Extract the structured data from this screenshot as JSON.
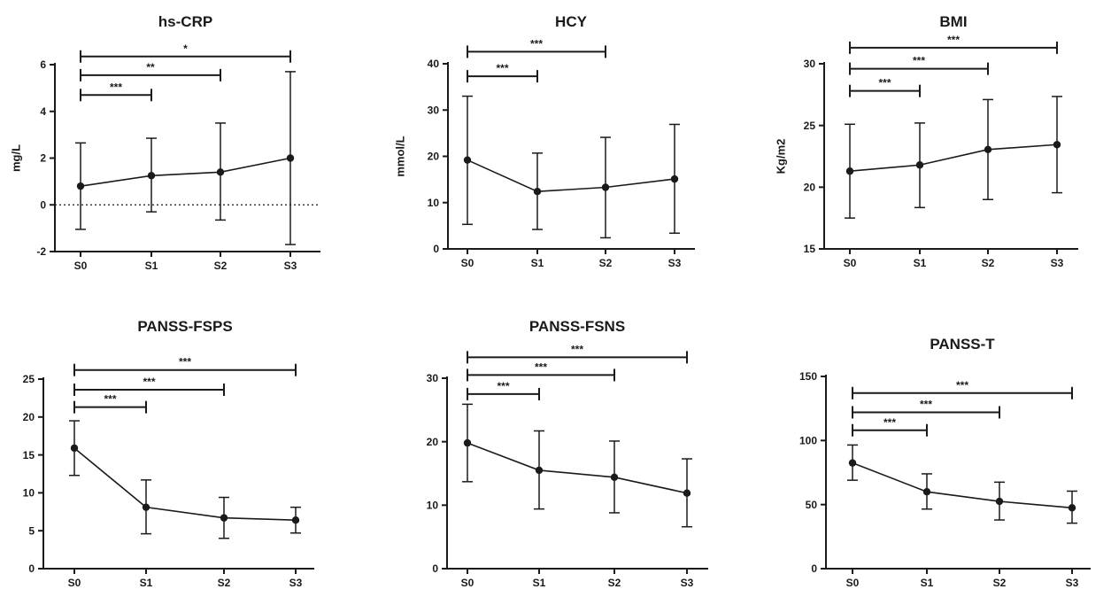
{
  "chart_data": [
    {
      "type": "line",
      "title": "hs-CRP",
      "ylabel": "mg/L",
      "xlabel": "",
      "categories": [
        "S0",
        "S1",
        "S2",
        "S3"
      ],
      "ylim": [
        -2,
        6
      ],
      "yticks": [
        -2,
        0,
        2,
        4,
        6
      ],
      "reference_line": 0,
      "series": [
        {
          "values": [
            0.8,
            1.25,
            1.4,
            2.0
          ],
          "error_low": [
            -1.05,
            -0.3,
            -0.65,
            -1.7
          ],
          "error_high": [
            2.65,
            2.85,
            3.5,
            5.7
          ]
        }
      ],
      "significance": [
        {
          "from": "S0",
          "to": "S1",
          "label": "***",
          "level": 4.7
        },
        {
          "from": "S0",
          "to": "S2",
          "label": "**",
          "level": 5.55
        },
        {
          "from": "S0",
          "to": "S3",
          "label": "*",
          "level": 6.35
        }
      ]
    },
    {
      "type": "line",
      "title": "HCY",
      "ylabel": "mmol/L",
      "xlabel": "",
      "categories": [
        "S0",
        "S1",
        "S2",
        "S3"
      ],
      "ylim": [
        0,
        40
      ],
      "yticks": [
        0,
        10,
        20,
        30,
        40
      ],
      "series": [
        {
          "values": [
            19.2,
            12.4,
            13.3,
            15.1
          ],
          "error_low": [
            5.3,
            4.2,
            2.4,
            3.4
          ],
          "error_high": [
            33.0,
            20.7,
            24.1,
            26.9
          ]
        }
      ],
      "significance": [
        {
          "from": "S0",
          "to": "S1",
          "label": "***",
          "level": 37.3
        },
        {
          "from": "S0",
          "to": "S2",
          "label": "***",
          "level": 42.6
        }
      ]
    },
    {
      "type": "line",
      "title": "BMI",
      "ylabel": "Kg/m2",
      "xlabel": "",
      "categories": [
        "S0",
        "S1",
        "S2",
        "S3"
      ],
      "ylim": [
        15,
        30
      ],
      "yticks": [
        15,
        20,
        25,
        30
      ],
      "series": [
        {
          "values": [
            21.3,
            21.8,
            23.05,
            23.45
          ],
          "error_low": [
            17.5,
            18.35,
            19.0,
            19.55
          ],
          "error_high": [
            25.1,
            25.2,
            27.1,
            27.35
          ]
        }
      ],
      "significance": [
        {
          "from": "S0",
          "to": "S1",
          "label": "***",
          "level": 27.8
        },
        {
          "from": "S0",
          "to": "S2",
          "label": "***",
          "level": 29.6
        },
        {
          "from": "S0",
          "to": "S3",
          "label": "***",
          "level": 31.3
        }
      ]
    },
    {
      "type": "line",
      "title": "PANSS-FSPS",
      "ylabel": "",
      "xlabel": "",
      "categories": [
        "S0",
        "S1",
        "S2",
        "S3"
      ],
      "ylim": [
        0,
        25
      ],
      "yticks": [
        0,
        5,
        10,
        15,
        20,
        25
      ],
      "series": [
        {
          "values": [
            15.9,
            8.1,
            6.7,
            6.4
          ],
          "error_low": [
            12.3,
            4.6,
            4.0,
            4.7
          ],
          "error_high": [
            19.5,
            11.7,
            9.4,
            8.1
          ]
        }
      ],
      "significance": [
        {
          "from": "S0",
          "to": "S1",
          "label": "***",
          "level": 21.3
        },
        {
          "from": "S0",
          "to": "S2",
          "label": "***",
          "level": 23.6
        },
        {
          "from": "S0",
          "to": "S3",
          "label": "***",
          "level": 26.2
        }
      ]
    },
    {
      "type": "line",
      "title": "PANSS-FSNS",
      "ylabel": "",
      "xlabel": "",
      "categories": [
        "S0",
        "S1",
        "S2",
        "S3"
      ],
      "ylim": [
        0,
        30
      ],
      "yticks": [
        0,
        10,
        20,
        30
      ],
      "series": [
        {
          "values": [
            19.8,
            15.5,
            14.4,
            11.9
          ],
          "error_low": [
            13.7,
            9.4,
            8.8,
            6.6
          ],
          "error_high": [
            25.9,
            21.7,
            20.1,
            17.3
          ]
        }
      ],
      "significance": [
        {
          "from": "S0",
          "to": "S1",
          "label": "***",
          "level": 27.5
        },
        {
          "from": "S0",
          "to": "S2",
          "label": "***",
          "level": 30.5
        },
        {
          "from": "S0",
          "to": "S3",
          "label": "***",
          "level": 33.3
        }
      ]
    },
    {
      "type": "line",
      "title": "PANSS-T",
      "ylabel": "",
      "xlabel": "",
      "categories": [
        "S0",
        "S1",
        "S2",
        "S3"
      ],
      "ylim": [
        0,
        150
      ],
      "yticks": [
        0,
        50,
        100,
        150
      ],
      "series": [
        {
          "values": [
            82.5,
            60.0,
            52.5,
            47.5
          ],
          "error_low": [
            69.0,
            46.5,
            38.0,
            35.5
          ],
          "error_high": [
            96.5,
            74.0,
            67.5,
            60.5
          ]
        }
      ],
      "significance": [
        {
          "from": "S0",
          "to": "S1",
          "label": "***",
          "level": 108
        },
        {
          "from": "S0",
          "to": "S2",
          "label": "***",
          "level": 122
        },
        {
          "from": "S0",
          "to": "S3",
          "label": "***",
          "level": 137
        }
      ]
    }
  ]
}
